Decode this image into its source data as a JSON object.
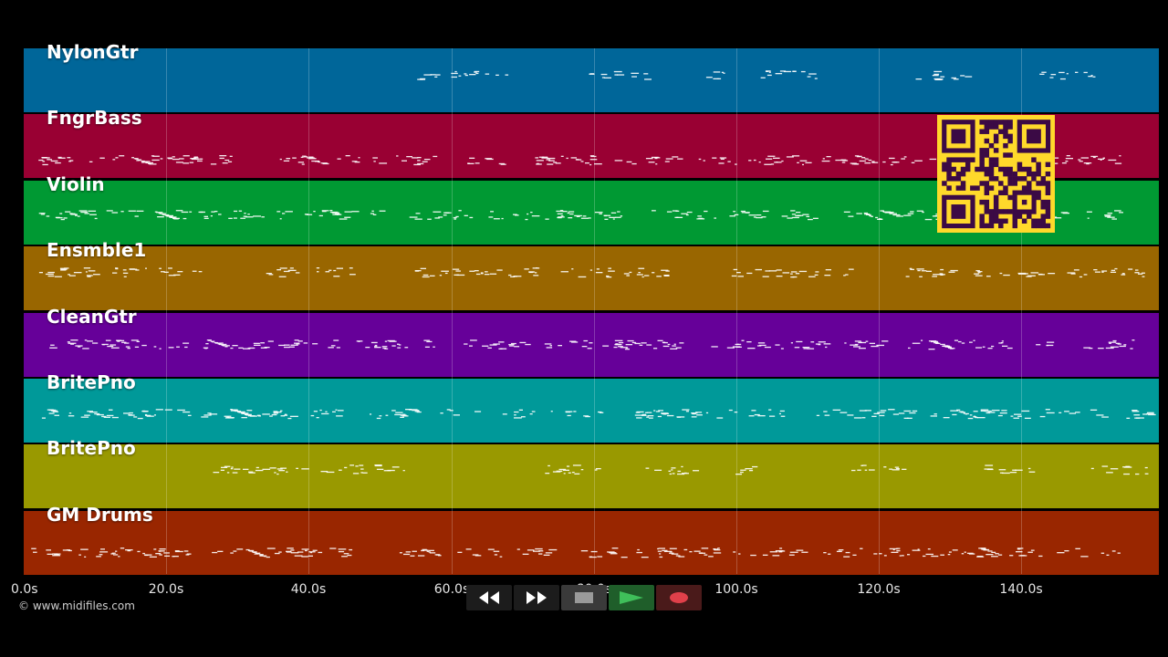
{
  "colors": {
    "background": "#000000",
    "gridline": "rgba(255,255,255,0.22)",
    "notes": "#ffffff",
    "qr_bg": "#ffd92b",
    "qr_fg": "#3b0a45"
  },
  "tracks": [
    {
      "name": "NylonGtr",
      "color": "#006699"
    },
    {
      "name": "FngrBass",
      "color": "#990033"
    },
    {
      "name": "Violin",
      "color": "#009933"
    },
    {
      "name": "Ensmble1",
      "color": "#996600"
    },
    {
      "name": "CleanGtr",
      "color": "#660099"
    },
    {
      "name": "BritePno",
      "color": "#009999"
    },
    {
      "name": "BritePno",
      "color": "#999900"
    },
    {
      "name": "GM Drums",
      "color": "#992600"
    }
  ],
  "timeline": {
    "ticks": [
      "0.0s",
      "20.0s",
      "40.0s",
      "60.0s",
      "80.0s",
      "100.0s",
      "120.0s",
      "140.0s"
    ]
  },
  "credit": "© www.midifiles.com",
  "transport": {
    "rewind_icon": "rewind-icon",
    "fast_forward_icon": "fast-forward-icon",
    "stop_icon": "stop-icon",
    "play_icon": "play-icon",
    "record_icon": "record-icon",
    "rewind_color": "#1c1c1c",
    "fast_forward_color": "#1c1c1c",
    "stop_color": "#3a3a3a",
    "play_color": "#1f5e2a",
    "record_color": "#4a1a1a"
  }
}
